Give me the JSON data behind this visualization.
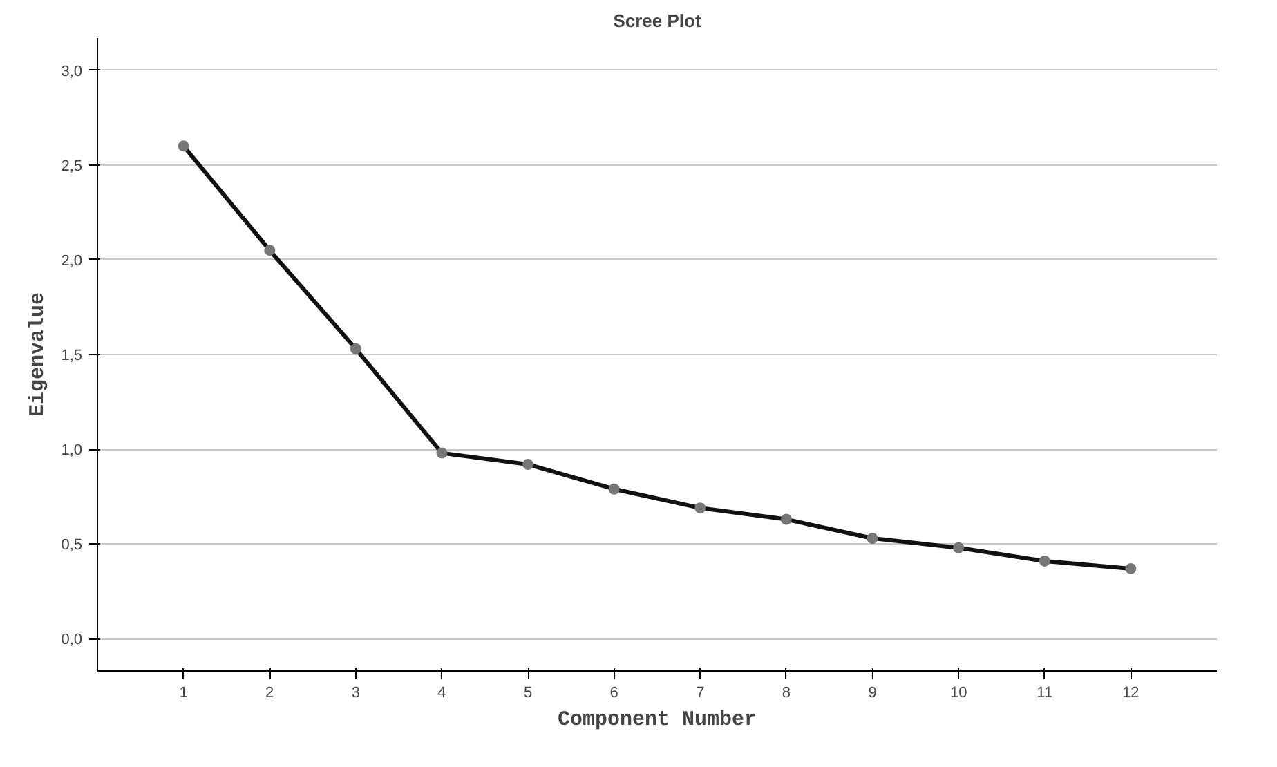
{
  "chart_data": {
    "type": "line",
    "title": "Scree Plot",
    "xlabel": "Component Number",
    "ylabel": "Eigenvalue",
    "x": [
      1,
      2,
      3,
      4,
      5,
      6,
      7,
      8,
      9,
      10,
      11,
      12
    ],
    "series": [
      {
        "color": "#111111",
        "values": [
          2.6,
          2.05,
          1.53,
          0.98,
          0.92,
          0.79,
          0.69,
          0.63,
          0.53,
          0.48,
          0.41,
          0.37
        ]
      }
    ],
    "xlim": [
      0,
      13
    ],
    "xticks": [
      1,
      2,
      3,
      4,
      5,
      6,
      7,
      8,
      9,
      10,
      11,
      12
    ],
    "ylim": [
      -0.17,
      3.17
    ],
    "yticks": [
      {
        "value": 0,
        "label": "0,0"
      },
      {
        "value": 0.5,
        "label": "0,5"
      },
      {
        "value": 1,
        "label": "1,0"
      },
      {
        "value": 1.5,
        "label": "1,5"
      },
      {
        "value": 2,
        "label": "2,0"
      },
      {
        "value": 2.5,
        "label": "2,5"
      },
      {
        "value": 3,
        "label": "3,0"
      }
    ],
    "grid": "y",
    "marker": "circle",
    "line_style": "solid"
  }
}
